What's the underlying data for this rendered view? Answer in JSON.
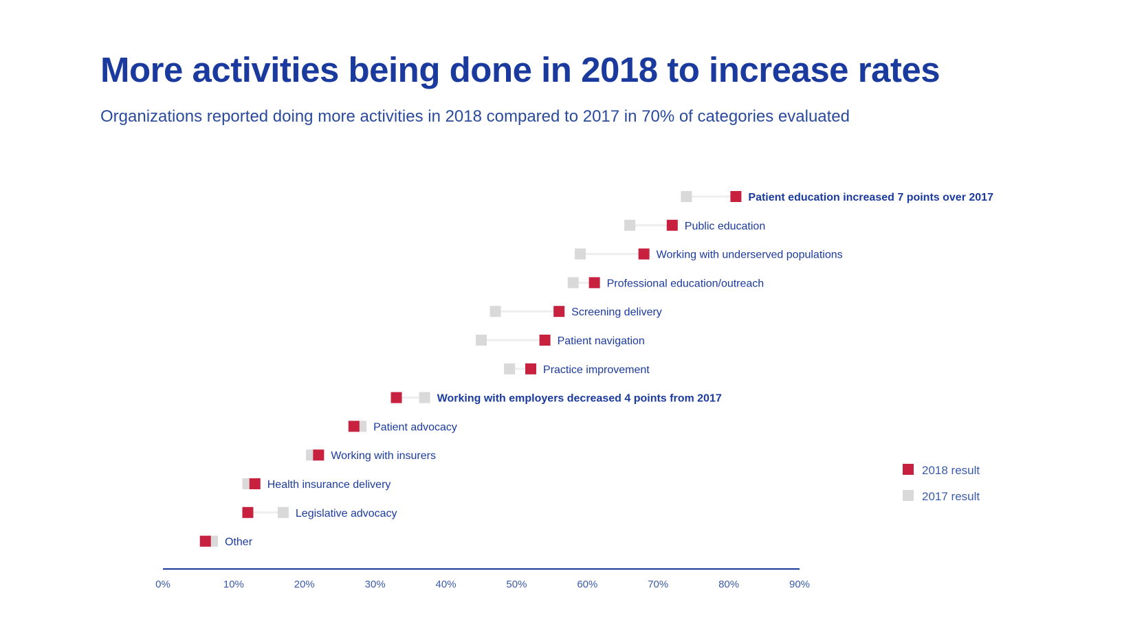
{
  "title": "More activities being done in 2018 to increase rates",
  "subtitle": "Organizations reported doing more activities in 2018 compared to 2017 in 70% of categories evaluated",
  "colors": {
    "y2018": "#c8203f",
    "y2017": "#d9d9d9",
    "connector": "#eeeeee",
    "text": "#1b3a9e",
    "axis": "#1b3a9e"
  },
  "legend": {
    "y2018": "2018 result",
    "y2017": "2017 result",
    "placement": "bottom-right"
  },
  "chart_data": {
    "type": "dumbbell",
    "xlim": [
      0,
      90
    ],
    "x_ticks": [
      "0%",
      "10%",
      "20%",
      "30%",
      "40%",
      "50%",
      "60%",
      "70%",
      "80%",
      "90%"
    ],
    "series": [
      {
        "name": "2018 result",
        "key": "y2018"
      },
      {
        "name": "2017 result",
        "key": "y2017"
      }
    ],
    "rows": [
      {
        "label": "Patient education increased 7 points over 2017",
        "y2017": 74,
        "y2018": 81,
        "emphasis": true
      },
      {
        "label": "Public education",
        "y2017": 66,
        "y2018": 72,
        "emphasis": false
      },
      {
        "label": "Working with underserved populations",
        "y2017": 59,
        "y2018": 68,
        "emphasis": false
      },
      {
        "label": "Professional education/outreach",
        "y2017": 58,
        "y2018": 61,
        "emphasis": false
      },
      {
        "label": "Screening delivery",
        "y2017": 47,
        "y2018": 56,
        "emphasis": false
      },
      {
        "label": "Patient navigation",
        "y2017": 45,
        "y2018": 54,
        "emphasis": false
      },
      {
        "label": "Practice improvement",
        "y2017": 49,
        "y2018": 52,
        "emphasis": false
      },
      {
        "label": "Working with employers decreased 4 points from 2017",
        "y2017": 37,
        "y2018": 33,
        "emphasis": true
      },
      {
        "label": "Patient advocacy",
        "y2017": 28,
        "y2018": 27,
        "emphasis": false
      },
      {
        "label": "Working with insurers",
        "y2017": 21,
        "y2018": 22,
        "emphasis": false
      },
      {
        "label": "Health insurance delivery",
        "y2017": 12,
        "y2018": 13,
        "emphasis": false
      },
      {
        "label": "Legislative advocacy",
        "y2017": 17,
        "y2018": 12,
        "emphasis": false
      },
      {
        "label": "Other",
        "y2017": 7,
        "y2018": 6,
        "emphasis": false
      }
    ]
  }
}
